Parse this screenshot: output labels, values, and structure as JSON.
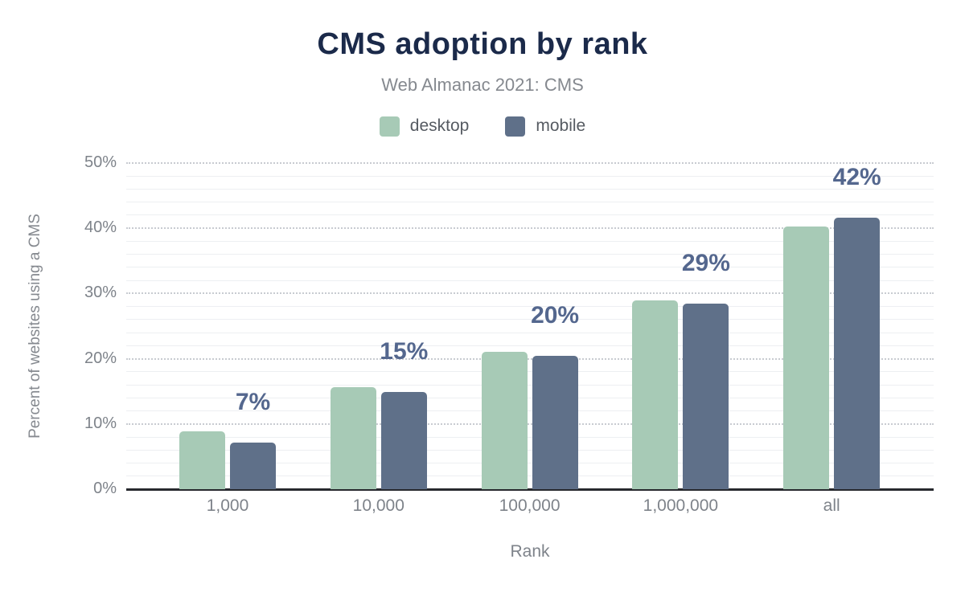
{
  "chart_data": {
    "type": "bar",
    "title": "CMS adoption by rank",
    "subtitle": "Web Almanac 2021: CMS",
    "xlabel": "Rank",
    "ylabel": "Percent of websites using a CMS",
    "categories": [
      "1,000",
      "10,000",
      "100,000",
      "1,000,000",
      "all"
    ],
    "series": [
      {
        "name": "desktop",
        "color": "#a7cab6",
        "values": [
          8.9,
          15.6,
          21.1,
          29.0,
          40.3
        ]
      },
      {
        "name": "mobile",
        "color": "#5f7089",
        "values": [
          7.2,
          14.9,
          20.4,
          28.5,
          41.6
        ]
      }
    ],
    "value_labels": {
      "above_series": "mobile",
      "texts": [
        "7%",
        "15%",
        "20%",
        "29%",
        "42%"
      ]
    },
    "ylim": [
      0,
      50
    ],
    "yticks": [
      0,
      10,
      20,
      30,
      40,
      50
    ],
    "ytick_labels": [
      "0%",
      "10%",
      "20%",
      "30%",
      "40%",
      "50%"
    ],
    "minor_grid_step_pct": 2,
    "grid_style": {
      "major": "dotted",
      "minor": "solid"
    },
    "legend_position": "top"
  },
  "colors": {
    "background": "#ffffff",
    "title": "#1b2a4a",
    "subtitle": "#85898f",
    "axis_text": "#7e838a",
    "legend_text": "#565b62",
    "value_label": "#54678e",
    "axis_line": "#27292e",
    "grid_major": "#c8cbd1",
    "grid_minor": "#edeff2",
    "desktop": "#a7cab6",
    "mobile": "#5f7089"
  }
}
